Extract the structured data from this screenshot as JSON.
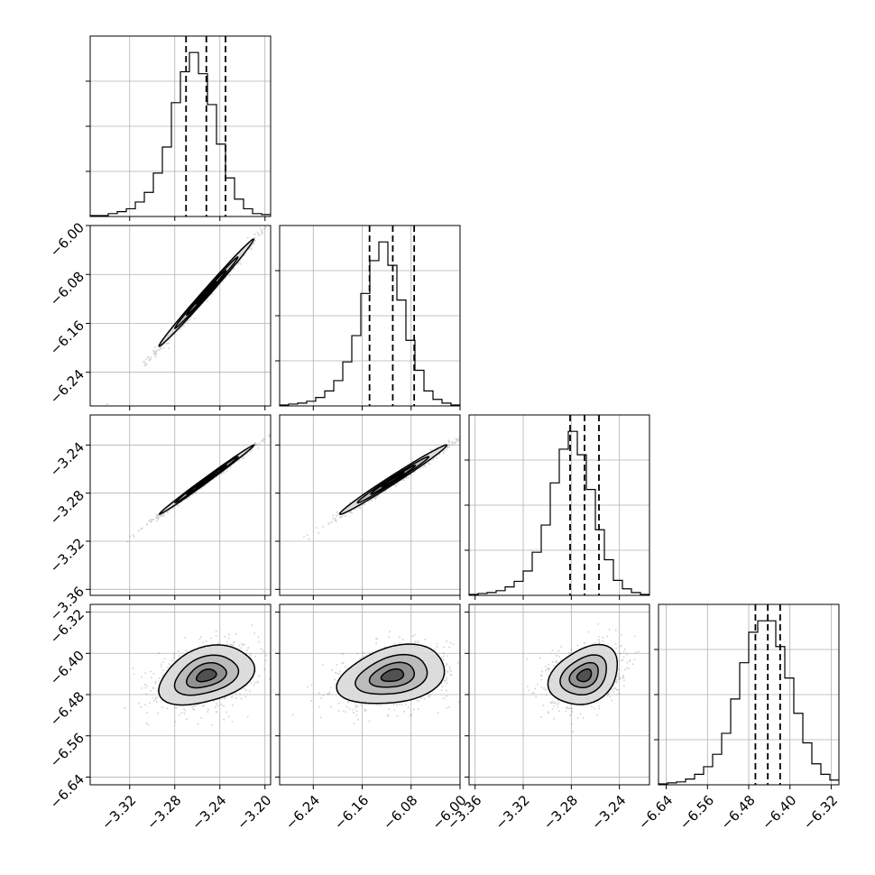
{
  "chart_data": {
    "type": "corner",
    "grid": true,
    "hist_bins": 20,
    "quantiles": [
      0.16,
      0.5,
      0.84
    ],
    "contour_levels": [
      0.5,
      0.75,
      0.9,
      0.99
    ],
    "colors": {
      "mark": "#000000",
      "grid": "#b0b0b0",
      "scatter": "#7a7a7a"
    },
    "parameters": [
      {
        "range": [
          -3.355,
          -3.195
        ],
        "ticks": [
          {
            "value": -3.32,
            "label": "−3.32"
          },
          {
            "value": -3.28,
            "label": "−3.28"
          },
          {
            "value": -3.24,
            "label": "−3.24"
          },
          {
            "value": -3.2,
            "label": "−3.20"
          }
        ],
        "quantile_values": [
          -3.27,
          -3.252,
          -3.235
        ],
        "hist_counts": [
          1,
          1,
          3,
          5,
          8,
          15,
          25,
          45,
          72,
          118,
          150,
          170,
          148,
          116,
          75,
          40,
          18,
          8,
          3,
          2
        ]
      },
      {
        "range": [
          -6.295,
          -6.0
        ],
        "ticks": [
          {
            "value": -6.24,
            "label": "−6.24"
          },
          {
            "value": -6.16,
            "label": "−6.16"
          },
          {
            "value": -6.08,
            "label": "−6.08"
          },
          {
            "value": -6.0,
            "label": "−6.00"
          }
        ],
        "quantile_values": [
          -6.148,
          -6.11,
          -6.075
        ],
        "hist_counts": [
          1,
          2,
          3,
          5,
          9,
          16,
          27,
          47,
          75,
          120,
          155,
          175,
          150,
          113,
          70,
          38,
          16,
          7,
          3,
          1
        ]
      },
      {
        "range": [
          -3.365,
          -3.215
        ],
        "ticks": [
          {
            "value": -3.36,
            "label": "−3.36"
          },
          {
            "value": -3.32,
            "label": "−3.32"
          },
          {
            "value": -3.28,
            "label": "−3.28"
          },
          {
            "value": -3.24,
            "label": "−3.24"
          }
        ],
        "quantile_values": [
          -3.281,
          -3.269,
          -3.257
        ],
        "hist_counts": [
          1,
          2,
          3,
          5,
          9,
          15,
          26,
          46,
          75,
          120,
          156,
          175,
          150,
          113,
          70,
          38,
          16,
          7,
          3,
          1
        ]
      },
      {
        "range": [
          -6.655,
          -6.305
        ],
        "ticks": [
          {
            "value": -6.64,
            "label": "−6.64"
          },
          {
            "value": -6.56,
            "label": "−6.56"
          },
          {
            "value": -6.48,
            "label": "−6.48"
          },
          {
            "value": -6.4,
            "label": "−6.40"
          },
          {
            "value": -6.32,
            "label": "−6.32"
          }
        ],
        "quantile_values": [
          -6.467,
          -6.443,
          -6.419
        ],
        "hist_counts": [
          1,
          2,
          3,
          6,
          11,
          19,
          32,
          54,
          90,
          128,
          160,
          172,
          172,
          145,
          112,
          75,
          44,
          22,
          11,
          5
        ]
      }
    ],
    "pairs": [
      {
        "row": 1,
        "col": 0,
        "corr": 0.995
      },
      {
        "row": 2,
        "col": 0,
        "corr": 0.996
      },
      {
        "row": 2,
        "col": 1,
        "corr": 0.99
      },
      {
        "row": 3,
        "col": 0,
        "corr": 0.35
      },
      {
        "row": 3,
        "col": 1,
        "corr": 0.3
      },
      {
        "row": 3,
        "col": 2,
        "corr": 0.3
      }
    ]
  }
}
